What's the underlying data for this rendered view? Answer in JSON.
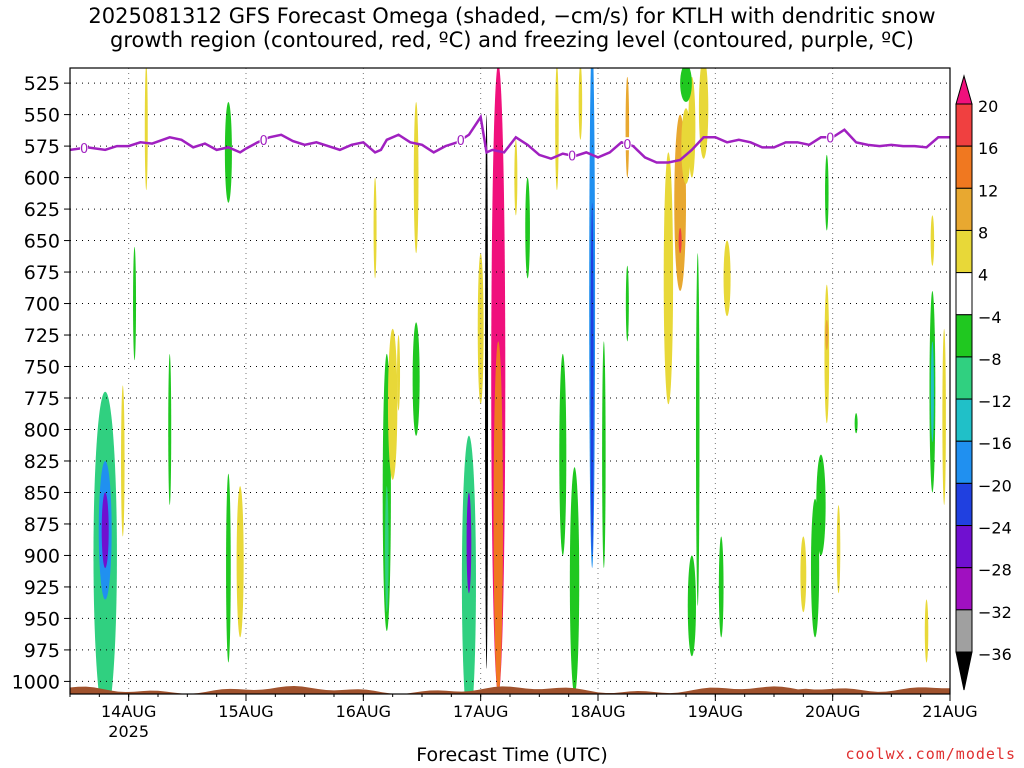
{
  "title_line1": "2025081312 GFS Forecast Omega (shaded, −cm/s) for KTLH with dendritic snow",
  "title_line2": "growth region (contoured, red, ºC) and freezing level (contoured, purple, ºC)",
  "credit": "coolwx.com/models",
  "chart_data": {
    "type": "heatmap",
    "xlabel": "Forecast Time (UTC)",
    "x_ticks": [
      "14AUG",
      "15AUG",
      "16AUG",
      "17AUG",
      "18AUG",
      "19AUG",
      "20AUG",
      "21AUG"
    ],
    "x_year_label": "2025",
    "y_ticks": [
      525,
      550,
      575,
      600,
      625,
      650,
      675,
      700,
      725,
      750,
      775,
      800,
      825,
      850,
      875,
      900,
      925,
      950,
      975,
      1000
    ],
    "y_range_hpa": [
      513,
      1010
    ],
    "x_range_days": [
      13.5,
      21.0
    ],
    "colorbar": {
      "labels": [
        "20",
        "16",
        "12",
        "8",
        "4",
        "−4",
        "−8",
        "−12",
        "−16",
        "−20",
        "−24",
        "−28",
        "−32",
        "−36"
      ],
      "colors": [
        "#f0107c",
        "#f04040",
        "#f07820",
        "#e8a830",
        "#e8d838",
        "#ffffff",
        "#20c820",
        "#30d080",
        "#20c0c8",
        "#2090f0",
        "#2040e0",
        "#7010d0",
        "#a010c0",
        "#a0a0a0",
        "#000000"
      ]
    },
    "freezing_level": {
      "label": "0",
      "color": "#a020c0",
      "points": [
        [
          13.5,
          578
        ],
        [
          13.65,
          576
        ],
        [
          13.8,
          578
        ],
        [
          13.9,
          575
        ],
        [
          14.0,
          575
        ],
        [
          14.1,
          572
        ],
        [
          14.2,
          573
        ],
        [
          14.35,
          568
        ],
        [
          14.45,
          570
        ],
        [
          14.55,
          576
        ],
        [
          14.65,
          573
        ],
        [
          14.75,
          578
        ],
        [
          14.85,
          576
        ],
        [
          14.95,
          580
        ],
        [
          15.0,
          577
        ],
        [
          15.1,
          572
        ],
        [
          15.2,
          568
        ],
        [
          15.3,
          566
        ],
        [
          15.4,
          571
        ],
        [
          15.5,
          574
        ],
        [
          15.6,
          572
        ],
        [
          15.7,
          575
        ],
        [
          15.8,
          578
        ],
        [
          15.9,
          574
        ],
        [
          16.0,
          572
        ],
        [
          16.1,
          580
        ],
        [
          16.15,
          578
        ],
        [
          16.2,
          570
        ],
        [
          16.3,
          566
        ],
        [
          16.4,
          572
        ],
        [
          16.5,
          574
        ],
        [
          16.6,
          580
        ],
        [
          16.7,
          575
        ],
        [
          16.8,
          572
        ],
        [
          16.9,
          566
        ],
        [
          17.0,
          552
        ],
        [
          17.05,
          580
        ],
        [
          17.1,
          578
        ],
        [
          17.2,
          580
        ],
        [
          17.3,
          568
        ],
        [
          17.4,
          574
        ],
        [
          17.5,
          582
        ],
        [
          17.6,
          585
        ],
        [
          17.7,
          581
        ],
        [
          17.8,
          583
        ],
        [
          17.9,
          580
        ],
        [
          18.0,
          584
        ],
        [
          18.1,
          580
        ],
        [
          18.2,
          572
        ],
        [
          18.3,
          575
        ],
        [
          18.4,
          584
        ],
        [
          18.5,
          588
        ],
        [
          18.6,
          588
        ],
        [
          18.7,
          586
        ],
        [
          18.8,
          578
        ],
        [
          18.9,
          568
        ],
        [
          19.0,
          568
        ],
        [
          19.1,
          572
        ],
        [
          19.2,
          570
        ],
        [
          19.3,
          572
        ],
        [
          19.4,
          576
        ],
        [
          19.5,
          576
        ],
        [
          19.6,
          572
        ],
        [
          19.7,
          572
        ],
        [
          19.8,
          574
        ],
        [
          19.9,
          568
        ],
        [
          20.0,
          568
        ],
        [
          20.1,
          562
        ],
        [
          20.2,
          572
        ],
        [
          20.3,
          574
        ],
        [
          20.4,
          575
        ],
        [
          20.5,
          574
        ],
        [
          20.6,
          575
        ],
        [
          20.7,
          575
        ],
        [
          20.8,
          576
        ],
        [
          20.9,
          568
        ],
        [
          21.0,
          568
        ]
      ],
      "contour_labels_x": [
        13.62,
        15.15,
        16.83,
        17.78,
        18.25,
        19.98
      ]
    },
    "omega_cells": [
      {
        "x": 13.8,
        "p": 900,
        "rx": 0.1,
        "rp": 130,
        "level": 7
      },
      {
        "x": 13.8,
        "p": 880,
        "rx": 0.055,
        "rp": 55,
        "level": 9
      },
      {
        "x": 13.8,
        "p": 880,
        "rx": 0.03,
        "rp": 30,
        "level": 11
      },
      {
        "x": 13.95,
        "p": 825,
        "rx": 0.015,
        "rp": 60,
        "level": 4
      },
      {
        "x": 14.05,
        "p": 700,
        "rx": 0.01,
        "rp": 45,
        "level": 6
      },
      {
        "x": 14.15,
        "p": 560,
        "rx": 0.012,
        "rp": 50,
        "level": 4
      },
      {
        "x": 14.35,
        "p": 800,
        "rx": 0.01,
        "rp": 60,
        "level": 6
      },
      {
        "x": 14.85,
        "p": 580,
        "rx": 0.03,
        "rp": 40,
        "level": 6
      },
      {
        "x": 14.85,
        "p": 910,
        "rx": 0.02,
        "rp": 75,
        "level": 6
      },
      {
        "x": 14.95,
        "p": 905,
        "rx": 0.03,
        "rp": 60,
        "level": 4
      },
      {
        "x": 16.1,
        "p": 640,
        "rx": 0.01,
        "rp": 40,
        "level": 4
      },
      {
        "x": 16.2,
        "p": 850,
        "rx": 0.035,
        "rp": 110,
        "level": 6
      },
      {
        "x": 16.2,
        "p": 895,
        "rx": 0.015,
        "rp": 50,
        "level": 7
      },
      {
        "x": 16.25,
        "p": 780,
        "rx": 0.04,
        "rp": 60,
        "level": 4
      },
      {
        "x": 16.3,
        "p": 755,
        "rx": 0.01,
        "rp": 30,
        "level": 4
      },
      {
        "x": 16.45,
        "p": 600,
        "rx": 0.02,
        "rp": 60,
        "level": 4
      },
      {
        "x": 16.45,
        "p": 760,
        "rx": 0.03,
        "rp": 45,
        "level": 6
      },
      {
        "x": 17.0,
        "p": 720,
        "rx": 0.025,
        "rp": 60,
        "level": 4
      },
      {
        "x": 16.9,
        "p": 920,
        "rx": 0.06,
        "rp": 115,
        "level": 7
      },
      {
        "x": 16.9,
        "p": 890,
        "rx": 0.02,
        "rp": 40,
        "level": 11
      },
      {
        "x": 17.05,
        "p": 770,
        "rx": 0.012,
        "rp": 220,
        "level": 14
      },
      {
        "x": 17.15,
        "p": 760,
        "rx": 0.06,
        "rp": 250,
        "level": 0
      },
      {
        "x": 17.15,
        "p": 870,
        "rx": 0.04,
        "rp": 140,
        "level": 2
      },
      {
        "x": 17.3,
        "p": 600,
        "rx": 0.01,
        "rp": 30,
        "level": 4
      },
      {
        "x": 17.4,
        "p": 640,
        "rx": 0.02,
        "rp": 40,
        "level": 6
      },
      {
        "x": 17.65,
        "p": 560,
        "rx": 0.015,
        "rp": 50,
        "level": 4
      },
      {
        "x": 17.7,
        "p": 820,
        "rx": 0.03,
        "rp": 80,
        "level": 6
      },
      {
        "x": 17.8,
        "p": 920,
        "rx": 0.04,
        "rp": 90,
        "level": 6
      },
      {
        "x": 17.85,
        "p": 540,
        "rx": 0.015,
        "rp": 30,
        "level": 4
      },
      {
        "x": 17.95,
        "p": 700,
        "rx": 0.025,
        "rp": 210,
        "level": 9
      },
      {
        "x": 17.95,
        "p": 760,
        "rx": 0.012,
        "rp": 140,
        "level": 10
      },
      {
        "x": 18.05,
        "p": 820,
        "rx": 0.015,
        "rp": 90,
        "level": 6
      },
      {
        "x": 18.25,
        "p": 560,
        "rx": 0.015,
        "rp": 40,
        "level": 3
      },
      {
        "x": 18.25,
        "p": 700,
        "rx": 0.01,
        "rp": 30,
        "level": 6
      },
      {
        "x": 18.6,
        "p": 680,
        "rx": 0.04,
        "rp": 100,
        "level": 4
      },
      {
        "x": 18.7,
        "p": 620,
        "rx": 0.05,
        "rp": 70,
        "level": 3
      },
      {
        "x": 18.7,
        "p": 650,
        "rx": 0.012,
        "rp": 10,
        "level": 1
      },
      {
        "x": 18.75,
        "p": 575,
        "rx": 0.04,
        "rp": 30,
        "level": 4
      },
      {
        "x": 18.85,
        "p": 800,
        "rx": 0.015,
        "rp": 140,
        "level": 6
      },
      {
        "x": 18.8,
        "p": 940,
        "rx": 0.035,
        "rp": 40,
        "level": 6
      },
      {
        "x": 18.8,
        "p": 560,
        "rx": 0.03,
        "rp": 40,
        "level": 4
      },
      {
        "x": 18.75,
        "p": 525,
        "rx": 0.05,
        "rp": 15,
        "level": 6
      },
      {
        "x": 18.9,
        "p": 545,
        "rx": 0.04,
        "rp": 40,
        "level": 4
      },
      {
        "x": 19.05,
        "p": 925,
        "rx": 0.02,
        "rp": 40,
        "level": 6
      },
      {
        "x": 19.1,
        "p": 680,
        "rx": 0.03,
        "rp": 30,
        "level": 4
      },
      {
        "x": 19.75,
        "p": 915,
        "rx": 0.025,
        "rp": 30,
        "level": 4
      },
      {
        "x": 19.85,
        "p": 910,
        "rx": 0.035,
        "rp": 55,
        "level": 6
      },
      {
        "x": 19.9,
        "p": 860,
        "rx": 0.04,
        "rp": 40,
        "level": 6
      },
      {
        "x": 20.05,
        "p": 895,
        "rx": 0.015,
        "rp": 35,
        "level": 4
      },
      {
        "x": 19.95,
        "p": 612,
        "rx": 0.015,
        "rp": 30,
        "level": 6
      },
      {
        "x": 19.95,
        "p": 740,
        "rx": 0.02,
        "rp": 55,
        "level": 4
      },
      {
        "x": 19.95,
        "p": 725,
        "rx": 0.01,
        "rp": 12,
        "level": 3
      },
      {
        "x": 20.2,
        "p": 795,
        "rx": 0.01,
        "rp": 8,
        "level": 6
      },
      {
        "x": 20.8,
        "p": 960,
        "rx": 0.015,
        "rp": 25,
        "level": 4
      },
      {
        "x": 20.85,
        "p": 650,
        "rx": 0.015,
        "rp": 20,
        "level": 4
      },
      {
        "x": 20.85,
        "p": 770,
        "rx": 0.025,
        "rp": 80,
        "level": 6
      },
      {
        "x": 20.85,
        "p": 770,
        "rx": 0.012,
        "rp": 40,
        "level": 8
      },
      {
        "x": 20.95,
        "p": 790,
        "rx": 0.015,
        "rp": 70,
        "level": 4
      }
    ]
  }
}
